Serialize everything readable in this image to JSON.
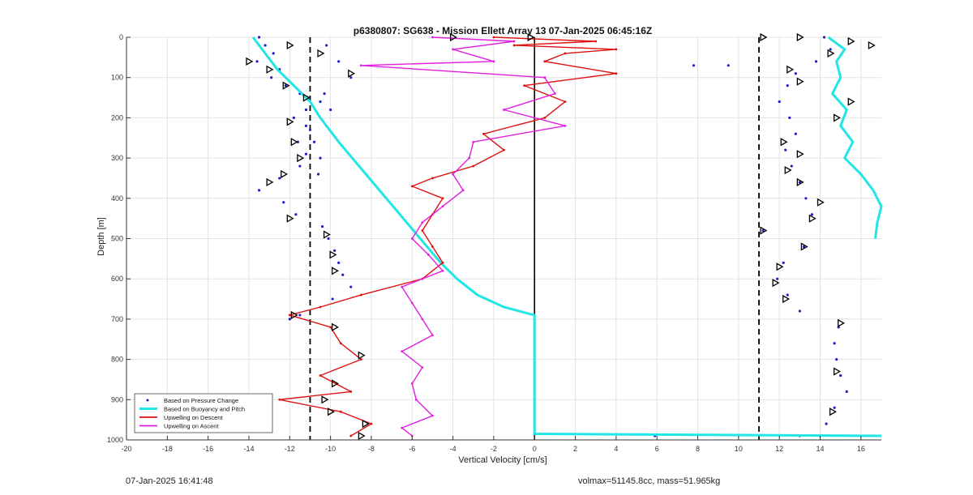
{
  "chart_data": {
    "type": "line",
    "title": "p6380807: SG638 - Mission Ellett Array 13 07-Jan-2025 06:45:16Z",
    "xlabel": "Vertical Velocity [cm/s]",
    "ylabel": "Depth [m]",
    "xlim": [
      -20,
      17
    ],
    "ylim": [
      0,
      1000
    ],
    "y_reversed": true,
    "grid": true,
    "xticks": [
      -20,
      -18,
      -16,
      -14,
      -12,
      -10,
      -8,
      -6,
      -4,
      -2,
      0,
      2,
      4,
      6,
      8,
      10,
      12,
      14,
      16
    ],
    "yticks": [
      0,
      100,
      200,
      300,
      400,
      500,
      600,
      700,
      800,
      900,
      1000
    ],
    "legend_position": "bottom-left",
    "reference_lines": [
      {
        "x": 0,
        "style": "solid",
        "color": "#000000"
      },
      {
        "x": -11,
        "style": "dashed",
        "color": "#000000"
      },
      {
        "x": 11,
        "style": "dashed",
        "color": "#000000"
      }
    ],
    "series": [
      {
        "name": "Based on Pressure Change",
        "kind": "scatter",
        "color": "#1f1fc8",
        "groups": [
          {
            "depth": [
              0,
              20,
              40,
              60,
              80,
              100,
              120,
              140,
              160,
              180,
              200,
              230,
              260,
              290,
              320,
              350,
              380,
              410,
              440,
              470,
              500,
              530,
              560,
              590,
              620,
              650,
              690,
              700
            ],
            "x": [
              -13.5,
              -13.2,
              -12.8,
              -13.6,
              -12.5,
              -12.9,
              -12.2,
              -11.5,
              -10.5,
              -11.2,
              -11.8,
              -11.0,
              -11.6,
              -11.2,
              -11.5,
              -12.5,
              -13.5,
              -12.3,
              -11.7,
              -10.4,
              -10.1,
              -9.8,
              -9.6,
              -9.4,
              -9.0,
              -9.9,
              -11.5,
              -12.0
            ]
          },
          {
            "depth": [
              20,
              60,
              100,
              140,
              180,
              220,
              260,
              300,
              340
            ],
            "x": [
              -10.2,
              -9.6,
              -9.0,
              -10.3,
              -10.0,
              -11.2,
              -10.8,
              -10.5,
              -10.6
            ]
          },
          {
            "depth": [
              0,
              30,
              60,
              90,
              120,
              160,
              200,
              240,
              280,
              320,
              360,
              400,
              440,
              480,
              520,
              560,
              600,
              640,
              680,
              720,
              760,
              800,
              840,
              880,
              920,
              960,
              990
            ],
            "x": [
              14.2,
              14.5,
              13.8,
              12.8,
              12.4,
              12.0,
              12.5,
              12.8,
              12.3,
              12.6,
              13.0,
              13.3,
              13.6,
              11.2,
              13.2,
              12.2,
              11.9,
              12.4,
              13.0,
              14.9,
              14.7,
              14.8,
              15.0,
              15.3,
              14.7,
              14.3,
              14.0
            ]
          },
          {
            "depth": [
              70,
              70,
              990,
              990
            ],
            "x": [
              7.8,
              9.5,
              5.9,
              13.0
            ]
          }
        ]
      },
      {
        "name": "Based on Buoyancy and Pitch",
        "kind": "line",
        "color": "#22e5e5",
        "segments": [
          {
            "depth": [
              0,
              40,
              80,
              120,
              160,
              200,
              260,
              320,
              380,
              440,
              500,
              560,
              600,
              640,
              670,
              685,
              690,
              720,
              800,
              900,
              985,
              990
            ],
            "x": [
              -13.8,
              -13.2,
              -12.6,
              -11.8,
              -11.0,
              -10.5,
              -9.6,
              -8.6,
              -7.6,
              -6.6,
              -5.6,
              -4.6,
              -3.8,
              -2.8,
              -1.5,
              -0.4,
              0,
              0,
              0,
              0,
              0,
              17
            ]
          },
          {
            "depth": [
              0,
              30,
              60,
              100,
              140,
              180,
              220,
              260,
              300,
              340,
              380,
              420,
              460,
              500
            ],
            "x": [
              14.4,
              15.2,
              14.8,
              15.0,
              14.6,
              15.3,
              15.0,
              15.6,
              15.2,
              16.0,
              16.6,
              17.0,
              16.8,
              16.7
            ]
          }
        ]
      },
      {
        "name": "Upwelling on Descent",
        "kind": "line",
        "color": "#dd1111",
        "depth": [
          0,
          10,
          20,
          30,
          40,
          60,
          90,
          120,
          160,
          200,
          240,
          280,
          320,
          350,
          370,
          400,
          440,
          480,
          520,
          560,
          600,
          640,
          670,
          690,
          720,
          760,
          800,
          840,
          880,
          900,
          930,
          960,
          990
        ],
        "x": [
          -2.0,
          3.0,
          -1.0,
          4.0,
          1.5,
          0.5,
          4.0,
          -0.5,
          1.5,
          0.5,
          -2.5,
          -1.5,
          -3.0,
          -5.0,
          -6.0,
          -4.5,
          -5.0,
          -5.5,
          -5.0,
          -4.5,
          -5.5,
          -8.5,
          -10.5,
          -12.0,
          -10.0,
          -9.5,
          -8.5,
          -10.5,
          -9.0,
          -12.5,
          -9.5,
          -8.0,
          -9.0
        ]
      },
      {
        "name": "Upwelling on Ascent",
        "kind": "line",
        "color": "#e01ee0",
        "depth": [
          0,
          10,
          30,
          60,
          70,
          100,
          140,
          180,
          220,
          260,
          300,
          340,
          380,
          420,
          460,
          500,
          540,
          580,
          620,
          660,
          700,
          740,
          780,
          820,
          860,
          900,
          940,
          970,
          990
        ],
        "x": [
          -5.0,
          -1.0,
          -4.0,
          -2.0,
          -8.5,
          0.5,
          1.0,
          -1.5,
          1.5,
          -3.0,
          -3.2,
          -4.0,
          -3.5,
          -4.5,
          -5.5,
          -6.0,
          -5.2,
          -4.5,
          -6.5,
          -6.0,
          -5.5,
          -5.0,
          -6.5,
          -5.5,
          -6.0,
          -5.8,
          -5.0,
          -6.5,
          -6.0
        ]
      }
    ],
    "markers": {
      "style": "open-triangle",
      "color": "#000000",
      "points": [
        {
          "x": -0.2,
          "depth": 0
        },
        {
          "x": -4.0,
          "depth": 0
        },
        {
          "x": -14.0,
          "depth": 60
        },
        {
          "x": -13.0,
          "depth": 80
        },
        {
          "x": -12.2,
          "depth": 120
        },
        {
          "x": -11.2,
          "depth": 150
        },
        {
          "x": -12.0,
          "depth": 210
        },
        {
          "x": -11.8,
          "depth": 260
        },
        {
          "x": -11.5,
          "depth": 300
        },
        {
          "x": -12.3,
          "depth": 340
        },
        {
          "x": -13.0,
          "depth": 360
        },
        {
          "x": -12.0,
          "depth": 450
        },
        {
          "x": -10.2,
          "depth": 490
        },
        {
          "x": -9.9,
          "depth": 540
        },
        {
          "x": -9.8,
          "depth": 580
        },
        {
          "x": -11.8,
          "depth": 690
        },
        {
          "x": -9.8,
          "depth": 720
        },
        {
          "x": -8.5,
          "depth": 790
        },
        {
          "x": -9.8,
          "depth": 860
        },
        {
          "x": -10.3,
          "depth": 900
        },
        {
          "x": -10.0,
          "depth": 930
        },
        {
          "x": -8.3,
          "depth": 960
        },
        {
          "x": -8.5,
          "depth": 990
        },
        {
          "x": -12.0,
          "depth": 20
        },
        {
          "x": -10.5,
          "depth": 40
        },
        {
          "x": -9.0,
          "depth": 90
        },
        {
          "x": 11.2,
          "depth": 0
        },
        {
          "x": 13.0,
          "depth": 0
        },
        {
          "x": 15.5,
          "depth": 10
        },
        {
          "x": 16.5,
          "depth": 20
        },
        {
          "x": 14.5,
          "depth": 40
        },
        {
          "x": 12.5,
          "depth": 80
        },
        {
          "x": 13.0,
          "depth": 110
        },
        {
          "x": 15.5,
          "depth": 160
        },
        {
          "x": 14.8,
          "depth": 200
        },
        {
          "x": 12.2,
          "depth": 260
        },
        {
          "x": 13.0,
          "depth": 290
        },
        {
          "x": 12.4,
          "depth": 330
        },
        {
          "x": 13.0,
          "depth": 360
        },
        {
          "x": 14.0,
          "depth": 410
        },
        {
          "x": 13.6,
          "depth": 450
        },
        {
          "x": 11.2,
          "depth": 480
        },
        {
          "x": 13.2,
          "depth": 520
        },
        {
          "x": 12.0,
          "depth": 570
        },
        {
          "x": 11.8,
          "depth": 610
        },
        {
          "x": 12.3,
          "depth": 650
        },
        {
          "x": 15.0,
          "depth": 710
        },
        {
          "x": 14.8,
          "depth": 830
        },
        {
          "x": 14.6,
          "depth": 930
        }
      ]
    }
  },
  "footer": {
    "timestamp": "07-Jan-2025 16:41:48",
    "info": "volmax=51145.8cc, mass=51.965kg"
  }
}
